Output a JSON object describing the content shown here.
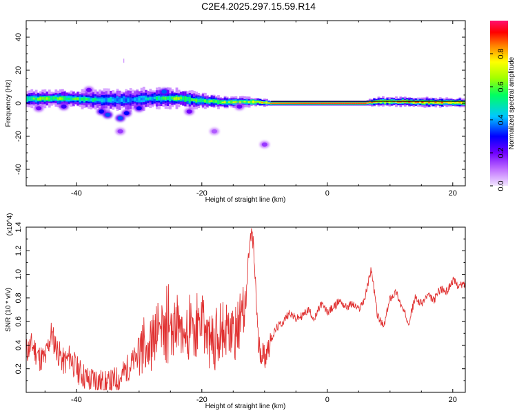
{
  "chart_data": [
    {
      "type": "heatmap",
      "title": "C2E4.2025.297.15.59.R14",
      "xlabel": "Height of straight line (km)",
      "ylabel": "Frequency (Hz)",
      "xlim": [
        -48,
        22
      ],
      "ylim": [
        -50,
        50
      ],
      "xticks": [
        -40,
        -20,
        0,
        20
      ],
      "yticks": [
        -40,
        -20,
        0,
        20,
        40
      ],
      "colorbar": {
        "label": "Normalized spectral amplitude",
        "ticks": [
          "0.0",
          "0.2",
          "0.4",
          "0.6",
          "0.8"
        ],
        "range": [
          0,
          1
        ],
        "colors": [
          "#f2e6ff",
          "#a020f0",
          "#0000ff",
          "#00c8ff",
          "#00ff80",
          "#80ff00",
          "#ffff00",
          "#ff8000",
          "#ff0000",
          "#ff1060"
        ]
      },
      "band": [
        {
          "x": -48,
          "f": 2.5,
          "w": 4.5,
          "a": 0.55
        },
        {
          "x": -44,
          "f": 3,
          "w": 4.5,
          "a": 0.6
        },
        {
          "x": -40,
          "f": 2.5,
          "w": 4.5,
          "a": 0.55
        },
        {
          "x": -36,
          "f": 2,
          "w": 6,
          "a": 0.45
        },
        {
          "x": -32,
          "f": 2,
          "w": 6,
          "a": 0.4
        },
        {
          "x": -28,
          "f": 3,
          "w": 5.5,
          "a": 0.45
        },
        {
          "x": -24,
          "f": 3,
          "w": 5,
          "a": 0.6
        },
        {
          "x": -20,
          "f": 1.5,
          "w": 4,
          "a": 0.55
        },
        {
          "x": -16,
          "f": 0.5,
          "w": 3,
          "a": 0.65
        },
        {
          "x": -12,
          "f": 1,
          "w": 2.5,
          "a": 0.7
        },
        {
          "x": -9,
          "f": 0,
          "w": 1.5,
          "a": 0.9
        },
        {
          "x": 0,
          "f": 0,
          "w": 1.5,
          "a": 0.95
        },
        {
          "x": 6,
          "f": 0,
          "w": 1.5,
          "a": 0.95
        },
        {
          "x": 8,
          "f": 1,
          "w": 2.5,
          "a": 0.75
        },
        {
          "x": 12,
          "f": 1,
          "w": 2.5,
          "a": 0.8
        },
        {
          "x": 16,
          "f": 0.5,
          "w": 2.5,
          "a": 0.8
        },
        {
          "x": 22,
          "f": 0.5,
          "w": 2.5,
          "a": 0.75
        }
      ],
      "scatter_blobs": [
        {
          "x": -36,
          "f": -5,
          "a": 0.3
        },
        {
          "x": -35,
          "f": -7,
          "a": 0.35
        },
        {
          "x": -33,
          "f": -9,
          "a": 0.35
        },
        {
          "x": -32,
          "f": -6,
          "a": 0.3
        },
        {
          "x": -30,
          "f": -3,
          "a": 0.3
        },
        {
          "x": -26,
          "f": 7,
          "a": 0.35
        },
        {
          "x": -42,
          "f": -2,
          "a": 0.25
        },
        {
          "x": -46,
          "f": -3,
          "a": 0.2
        },
        {
          "x": -38,
          "f": 8,
          "a": 0.2
        },
        {
          "x": -14,
          "f": -2,
          "a": 0.2
        },
        {
          "x": -10,
          "f": -25,
          "a": 0.15
        },
        {
          "x": -33,
          "f": -17,
          "a": 0.15
        },
        {
          "x": -22,
          "f": -5,
          "a": 0.2
        },
        {
          "x": -18,
          "f": -17,
          "a": 0.12
        }
      ]
    },
    {
      "type": "line",
      "xlabel": "Height of straight line (km)",
      "ylabel": "SNR (10 * v/v)",
      "yscale_label": "(x10^4)",
      "xlim": [
        -48,
        22
      ],
      "ylim": [
        0,
        1.4
      ],
      "xticks": [
        -40,
        -20,
        0,
        20
      ],
      "yticks": [
        0.2,
        0.4,
        0.6,
        0.8,
        1.0,
        1.2,
        1.4
      ],
      "ytick_labels": [
        "0.2",
        "0.4",
        "0.6",
        "0.8",
        "1.0",
        "1.2",
        "1.4"
      ],
      "color": "#e03030",
      "series": [
        {
          "name": "SNR",
          "x": [
            -48,
            -47,
            -46,
            -45,
            -44,
            -43,
            -42,
            -41,
            -40,
            -39,
            -38,
            -37,
            -36,
            -35,
            -34,
            -33,
            -32,
            -31,
            -30,
            -29,
            -28,
            -27,
            -26,
            -25,
            -24,
            -23,
            -22,
            -21,
            -20,
            -19,
            -18,
            -17,
            -16,
            -15,
            -14,
            -13,
            -12.5,
            -12,
            -11.5,
            -11,
            -10,
            -9,
            -8,
            -7,
            -6,
            -5,
            -4,
            -3,
            -2,
            -1,
            0,
            1,
            2,
            3,
            4,
            5,
            6,
            7,
            8,
            9,
            10,
            11,
            12,
            13,
            14,
            15,
            16,
            17,
            18,
            19,
            20,
            21,
            22
          ],
          "y": [
            0.35,
            0.4,
            0.3,
            0.28,
            0.5,
            0.35,
            0.25,
            0.3,
            0.2,
            0.15,
            0.1,
            0.12,
            0.08,
            0.06,
            0.1,
            0.12,
            0.2,
            0.25,
            0.35,
            0.45,
            0.4,
            0.55,
            0.5,
            0.45,
            0.6,
            0.55,
            0.45,
            0.5,
            0.6,
            0.45,
            0.4,
            0.55,
            0.5,
            0.45,
            0.6,
            0.7,
            1.2,
            1.35,
            1.0,
            0.4,
            0.3,
            0.45,
            0.55,
            0.6,
            0.68,
            0.62,
            0.65,
            0.7,
            0.62,
            0.75,
            0.68,
            0.72,
            0.78,
            0.72,
            0.75,
            0.7,
            0.8,
            1.05,
            0.65,
            0.55,
            0.8,
            0.85,
            0.7,
            0.6,
            0.8,
            0.75,
            0.82,
            0.78,
            0.88,
            0.85,
            0.95,
            0.9,
            0.92
          ]
        }
      ]
    }
  ]
}
